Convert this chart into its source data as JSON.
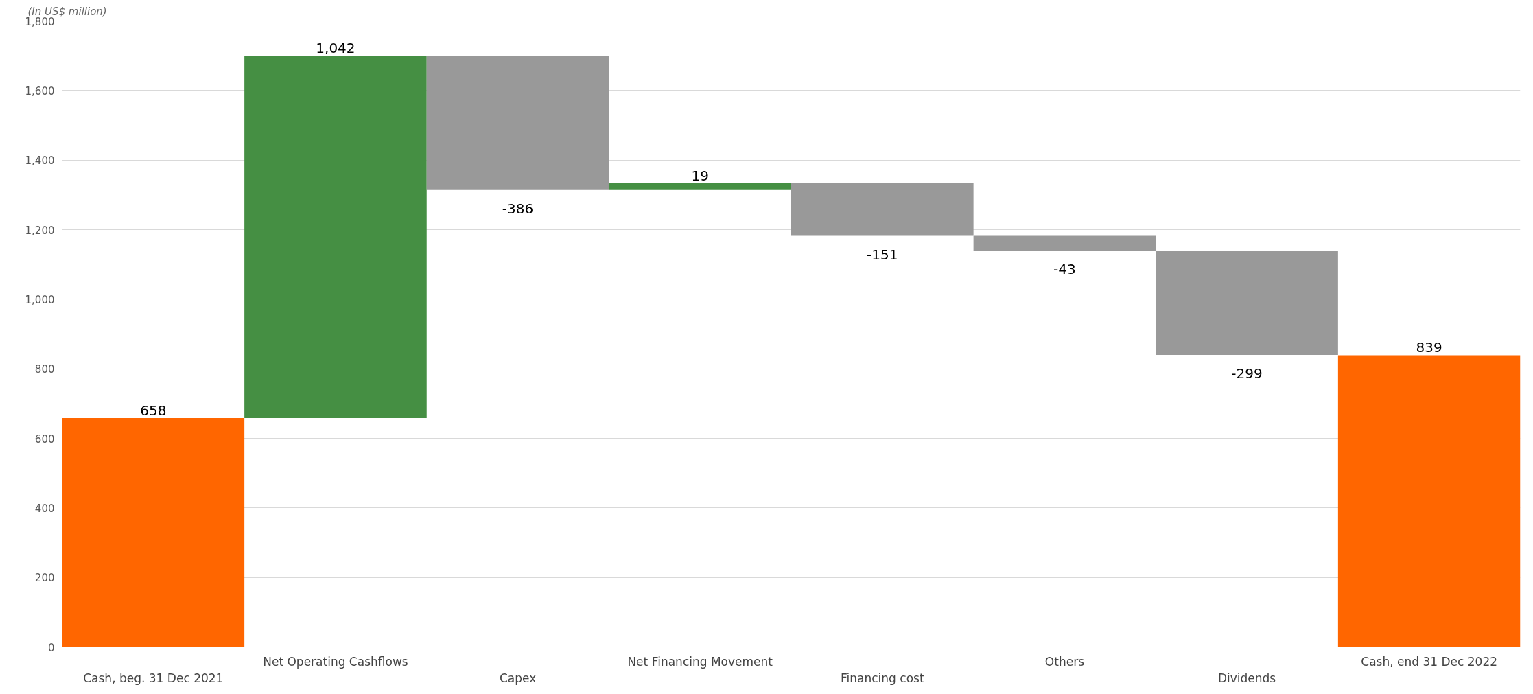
{
  "chart_data": {
    "type": "bar",
    "annotations": [
      "(In US$ million)"
    ],
    "categories": [
      "Cash, beg. 31 Dec 2021",
      "Net Operating Cashflows",
      "Capex",
      "Net Financing Movement",
      "Financing cost",
      "Others",
      "Dividends",
      "Cash, end 31 Dec 2022"
    ],
    "values": [
      658,
      1042,
      -386,
      19,
      -151,
      -43,
      -299,
      839
    ],
    "base": [
      0,
      658,
      1700,
      1314,
      1333,
      1182,
      1139,
      0
    ],
    "colors": [
      "#ff6600",
      "#458f43",
      "#999999",
      "#458f43",
      "#999999",
      "#999999",
      "#999999",
      "#ff6600"
    ],
    "value_labels": [
      "658",
      "1,042",
      "-386",
      "19",
      "-151",
      "-43",
      "-299",
      "839"
    ],
    "ylim": [
      0,
      1800
    ],
    "yticks": [
      {
        "value": 0,
        "label": "0"
      },
      {
        "value": 200,
        "label": "200"
      },
      {
        "value": 400,
        "label": "400"
      },
      {
        "value": 600,
        "label": "600"
      },
      {
        "value": 800,
        "label": "800"
      },
      {
        "value": 1000,
        "label": "1,000"
      },
      {
        "value": 1200,
        "label": "1,200"
      },
      {
        "value": 1400,
        "label": "1,400"
      },
      {
        "value": 1600,
        "label": "1,600"
      },
      {
        "value": 1800,
        "label": "1,800"
      }
    ],
    "grid": "y"
  }
}
